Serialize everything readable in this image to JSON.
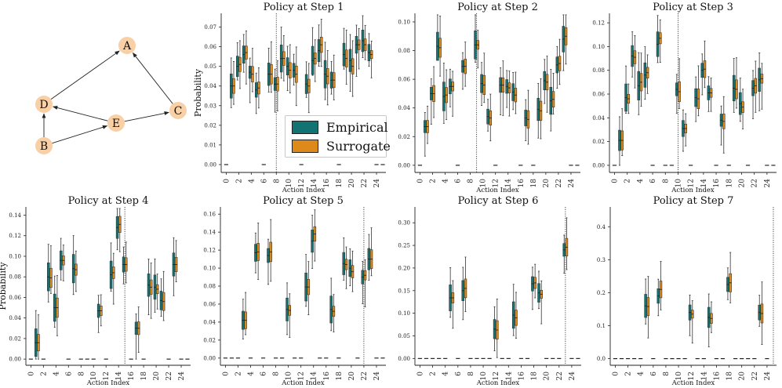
{
  "graph": {
    "nodes": [
      {
        "id": "A",
        "label": "A"
      },
      {
        "id": "B",
        "label": "B"
      },
      {
        "id": "C",
        "label": "C"
      },
      {
        "id": "D",
        "label": "D"
      },
      {
        "id": "E",
        "label": "E"
      }
    ],
    "edges": [
      [
        "B",
        "D"
      ],
      [
        "B",
        "E"
      ],
      [
        "E",
        "D"
      ],
      [
        "E",
        "C"
      ],
      [
        "D",
        "A"
      ],
      [
        "C",
        "A"
      ]
    ],
    "node_color": "#f9cfa5"
  },
  "legend": {
    "items": [
      {
        "label": "Empirical",
        "color": "#127373"
      },
      {
        "label": "Surrogate",
        "color": "#dd8a1b"
      }
    ]
  },
  "chart_data": [
    {
      "type": "box",
      "title": "Policy at Step 1",
      "xlabel": "Action Index",
      "ylabel": "Probability",
      "ylim": [
        -0.004,
        0.077
      ],
      "yticks": [
        0.0,
        0.01,
        0.02,
        0.03,
        0.04,
        0.05,
        0.06,
        0.07
      ],
      "ydec": 2,
      "vline": 8,
      "empirical": [
        [
          1,
          0.04
        ],
        [
          2,
          0.05
        ],
        [
          3,
          0.056
        ],
        [
          4,
          0.047
        ],
        [
          5,
          0.038
        ],
        [
          7,
          0.046
        ],
        [
          8,
          0.041
        ],
        [
          9,
          0.054
        ],
        [
          10,
          0.05
        ],
        [
          11,
          0.048
        ],
        [
          13,
          0.041
        ],
        [
          14,
          0.053
        ],
        [
          15,
          0.058
        ],
        [
          16,
          0.046
        ],
        [
          17,
          0.043
        ],
        [
          19,
          0.056
        ],
        [
          20,
          0.053
        ],
        [
          21,
          0.061
        ],
        [
          22,
          0.063
        ],
        [
          23,
          0.057
        ]
      ],
      "surrogate": [
        [
          1,
          0.04
        ],
        [
          2,
          0.051
        ],
        [
          3,
          0.057
        ],
        [
          4,
          0.046
        ],
        [
          5,
          0.039
        ],
        [
          7,
          0.046
        ],
        [
          8,
          0.041
        ],
        [
          9,
          0.054
        ],
        [
          10,
          0.048
        ],
        [
          11,
          0.046
        ],
        [
          13,
          0.04
        ],
        [
          14,
          0.054
        ],
        [
          15,
          0.061
        ],
        [
          16,
          0.045
        ],
        [
          17,
          0.043
        ],
        [
          19,
          0.054
        ],
        [
          20,
          0.05
        ],
        [
          21,
          0.061
        ],
        [
          22,
          0.061
        ],
        [
          23,
          0.056
        ]
      ],
      "zeros": [
        0,
        6,
        12,
        18,
        24,
        25
      ]
    },
    {
      "type": "box",
      "title": "Policy at Step 2",
      "xlabel": "Action Index",
      "ylabel": "",
      "ylim": [
        -0.005,
        0.106
      ],
      "yticks": [
        0.0,
        0.02,
        0.04,
        0.06,
        0.08,
        0.1
      ],
      "ydec": 2,
      "vline": 9,
      "empirical": [
        [
          1,
          0.027
        ],
        [
          2,
          0.05
        ],
        [
          3,
          0.083
        ],
        [
          4,
          0.048
        ],
        [
          5,
          0.055
        ],
        [
          7,
          0.069
        ],
        [
          9,
          0.084
        ],
        [
          10,
          0.057
        ],
        [
          11,
          0.034
        ],
        [
          13,
          0.056
        ],
        [
          14,
          0.055
        ],
        [
          15,
          0.051
        ],
        [
          17,
          0.033
        ],
        [
          19,
          0.039
        ],
        [
          20,
          0.059
        ],
        [
          21,
          0.045
        ],
        [
          22,
          0.07
        ],
        [
          23,
          0.088
        ]
      ],
      "surrogate": [
        [
          1,
          0.027
        ],
        [
          2,
          0.05
        ],
        [
          3,
          0.082
        ],
        [
          4,
          0.049
        ],
        [
          5,
          0.055
        ],
        [
          7,
          0.069
        ],
        [
          9,
          0.084
        ],
        [
          10,
          0.056
        ],
        [
          11,
          0.033
        ],
        [
          13,
          0.056
        ],
        [
          14,
          0.054
        ],
        [
          15,
          0.049
        ],
        [
          17,
          0.032
        ],
        [
          19,
          0.038
        ],
        [
          20,
          0.058
        ],
        [
          21,
          0.046
        ],
        [
          22,
          0.071
        ],
        [
          23,
          0.09
        ]
      ],
      "zeros": [
        0,
        6,
        12,
        16,
        18,
        24,
        25
      ]
    },
    {
      "type": "box",
      "title": "Policy at Step 3",
      "xlabel": "Action Index",
      "ylabel": "",
      "ylim": [
        -0.006,
        0.128
      ],
      "yticks": [
        0.0,
        0.02,
        0.04,
        0.06,
        0.08,
        0.1,
        0.12
      ],
      "ydec": 2,
      "vline": 10,
      "empirical": [
        [
          1,
          0.021
        ],
        [
          2,
          0.057
        ],
        [
          3,
          0.092
        ],
        [
          4,
          0.067
        ],
        [
          5,
          0.076
        ],
        [
          7,
          0.102
        ],
        [
          10,
          0.064
        ],
        [
          11,
          0.031
        ],
        [
          13,
          0.057
        ],
        [
          14,
          0.08
        ],
        [
          15,
          0.061
        ],
        [
          17,
          0.038
        ],
        [
          19,
          0.065
        ],
        [
          20,
          0.052
        ],
        [
          22,
          0.065
        ],
        [
          23,
          0.072
        ]
      ],
      "surrogate": [
        [
          1,
          0.021
        ],
        [
          2,
          0.056
        ],
        [
          3,
          0.091
        ],
        [
          4,
          0.07
        ],
        [
          5,
          0.078
        ],
        [
          7,
          0.107
        ],
        [
          10,
          0.062
        ],
        [
          11,
          0.031
        ],
        [
          13,
          0.056
        ],
        [
          14,
          0.081
        ],
        [
          15,
          0.061
        ],
        [
          17,
          0.037
        ],
        [
          19,
          0.064
        ],
        [
          20,
          0.049
        ],
        [
          22,
          0.067
        ],
        [
          23,
          0.073
        ]
      ],
      "zeros": [
        0,
        6,
        8,
        9,
        12,
        16,
        18,
        21,
        24,
        25
      ]
    },
    {
      "type": "box",
      "title": "Policy at Step 4",
      "xlabel": "Action Index",
      "ylabel": "Probability",
      "ylim": [
        -0.006,
        0.148
      ],
      "yticks": [
        0.0,
        0.02,
        0.04,
        0.06,
        0.08,
        0.1,
        0.12,
        0.14
      ],
      "ydec": 2,
      "vline": 15,
      "empirical": [
        [
          1,
          0.016
        ],
        [
          3,
          0.08
        ],
        [
          4,
          0.05
        ],
        [
          5,
          0.096
        ],
        [
          7,
          0.088
        ],
        [
          11,
          0.047
        ],
        [
          13,
          0.082
        ],
        [
          14,
          0.128
        ],
        [
          15,
          0.092
        ],
        [
          17,
          0.03
        ],
        [
          19,
          0.072
        ],
        [
          20,
          0.07
        ],
        [
          21,
          0.057
        ],
        [
          23,
          0.092
        ]
      ],
      "surrogate": [
        [
          1,
          0.016
        ],
        [
          3,
          0.079
        ],
        [
          4,
          0.05
        ],
        [
          5,
          0.096
        ],
        [
          7,
          0.087
        ],
        [
          11,
          0.047
        ],
        [
          13,
          0.084
        ],
        [
          14,
          0.131
        ],
        [
          15,
          0.092
        ],
        [
          17,
          0.03
        ],
        [
          19,
          0.07
        ],
        [
          20,
          0.068
        ],
        [
          21,
          0.056
        ],
        [
          23,
          0.092
        ]
      ],
      "zeros": [
        0,
        2,
        6,
        8,
        9,
        10,
        12,
        16,
        18,
        22,
        24,
        25
      ]
    },
    {
      "type": "box",
      "title": "Policy at Step 5",
      "xlabel": "Action Index",
      "ylabel": "",
      "ylim": [
        -0.008,
        0.168
      ],
      "yticks": [
        0.0,
        0.02,
        0.04,
        0.06,
        0.08,
        0.1,
        0.12,
        0.14,
        0.16
      ],
      "ydec": 2,
      "vline": 22,
      "empirical": [
        [
          3,
          0.042
        ],
        [
          5,
          0.117
        ],
        [
          7,
          0.114
        ],
        [
          10,
          0.054
        ],
        [
          13,
          0.079
        ],
        [
          14,
          0.13
        ],
        [
          17,
          0.054
        ],
        [
          19,
          0.105
        ],
        [
          20,
          0.1
        ],
        [
          22,
          0.09
        ],
        [
          23,
          0.11
        ]
      ],
      "surrogate": [
        [
          3,
          0.042
        ],
        [
          5,
          0.118
        ],
        [
          7,
          0.118
        ],
        [
          10,
          0.053
        ],
        [
          13,
          0.079
        ],
        [
          14,
          0.138
        ],
        [
          17,
          0.052
        ],
        [
          19,
          0.104
        ],
        [
          20,
          0.096
        ],
        [
          22,
          0.092
        ],
        [
          23,
          0.11
        ]
      ],
      "zeros": [
        0,
        1,
        2,
        4,
        6,
        8,
        9,
        11,
        12,
        15,
        16,
        18,
        21,
        24,
        25
      ]
    },
    {
      "type": "box",
      "title": "Policy at Step 6",
      "xlabel": "Action Index",
      "ylabel": "",
      "ylim": [
        -0.015,
        0.335
      ],
      "yticks": [
        0.0,
        0.05,
        0.1,
        0.15,
        0.2,
        0.25,
        0.3
      ],
      "ydec": 2,
      "vline": 23,
      "empirical": [
        [
          5,
          0.134
        ],
        [
          7,
          0.15
        ],
        [
          12,
          0.065
        ],
        [
          15,
          0.096
        ],
        [
          18,
          0.165
        ],
        [
          19,
          0.145
        ],
        [
          23,
          0.24
        ]
      ],
      "surrogate": [
        [
          5,
          0.134
        ],
        [
          7,
          0.155
        ],
        [
          12,
          0.063
        ],
        [
          15,
          0.09
        ],
        [
          18,
          0.167
        ],
        [
          19,
          0.142
        ],
        [
          23,
          0.246
        ]
      ],
      "zeros": [
        0,
        1,
        2,
        3,
        4,
        6,
        8,
        9,
        10,
        11,
        13,
        14,
        16,
        17,
        20,
        21,
        22,
        24,
        25
      ]
    },
    {
      "type": "box",
      "title": "Policy at Step 7",
      "xlabel": "Action Index",
      "ylabel": "",
      "ylim": [
        -0.02,
        0.46
      ],
      "yticks": [
        0.0,
        0.1,
        0.2,
        0.3,
        0.4
      ],
      "ydec": 1,
      "vline": 25,
      "empirical": [
        [
          5,
          0.16
        ],
        [
          7,
          0.19
        ],
        [
          12,
          0.14
        ],
        [
          15,
          0.125
        ],
        [
          18,
          0.225
        ],
        [
          23,
          0.14
        ]
      ],
      "surrogate": [
        [
          5,
          0.158
        ],
        [
          7,
          0.21
        ],
        [
          12,
          0.135
        ],
        [
          15,
          0.122
        ],
        [
          18,
          0.23
        ],
        [
          23,
          0.137
        ]
      ],
      "zeros": [
        0,
        1,
        2,
        3,
        4,
        6,
        8,
        9,
        10,
        11,
        13,
        14,
        16,
        17,
        19,
        20,
        21,
        22,
        24
      ]
    }
  ],
  "xticks": [
    0,
    2,
    4,
    6,
    8,
    10,
    12,
    14,
    16,
    18,
    20,
    22,
    24
  ]
}
